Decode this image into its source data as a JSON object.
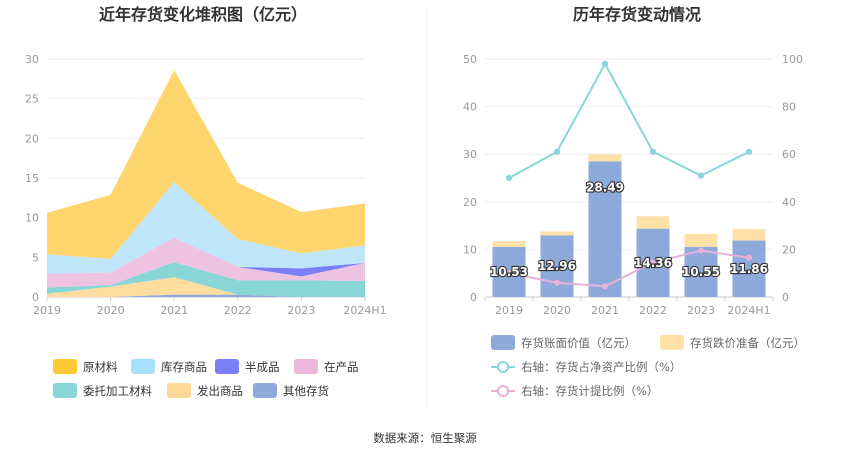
{
  "chart_data": [
    {
      "type": "area",
      "stacked": true,
      "title": "近年存货变化堆积图（亿元）",
      "categories": [
        "2019",
        "2020",
        "2021",
        "2022",
        "2023",
        "2024H1"
      ],
      "ylim": [
        0,
        30
      ],
      "yticks": [
        "0",
        "5",
        "10",
        "15",
        "20",
        "25",
        "30"
      ],
      "series": [
        {
          "name": "其他存货",
          "color": "#8eaadb",
          "values": [
            0,
            0,
            0.3,
            0.3,
            0,
            0
          ]
        },
        {
          "name": "发出商品",
          "color": "#ffdca0",
          "values": [
            0.4,
            1.3,
            2.2,
            0,
            0,
            0
          ]
        },
        {
          "name": "委托加工材料",
          "color": "#88d6d6",
          "values": [
            0.8,
            0.2,
            1.9,
            1.8,
            2.1,
            2.0
          ]
        },
        {
          "name": "在产品",
          "color": "#eec3e1",
          "values": [
            1.7,
            1.6,
            3.1,
            1.7,
            0.5,
            2.3
          ]
        },
        {
          "name": "半成品",
          "color": "#7b7ff5",
          "values": [
            0,
            0,
            0,
            0,
            1.0,
            0
          ]
        },
        {
          "name": "库存商品",
          "color": "#bee5f8",
          "values": [
            2.5,
            1.7,
            7.0,
            3.5,
            1.9,
            2.2
          ]
        },
        {
          "name": "原材料",
          "color": "#ffd56e",
          "values": [
            5.2,
            8.1,
            14.1,
            7.1,
            5.2,
            5.3
          ]
        }
      ],
      "legend": [
        {
          "name": "原材料",
          "color": "#ffc933"
        },
        {
          "name": "库存商品",
          "color": "#a7e0fb"
        },
        {
          "name": "半成品",
          "color": "#7b7ff5"
        },
        {
          "name": "在产品",
          "color": "#ecb6dd"
        },
        {
          "name": "委托加工材料",
          "color": "#88d6d6"
        },
        {
          "name": "发出商品",
          "color": "#ffd896"
        },
        {
          "name": "其他存货",
          "color": "#8eaadb"
        }
      ],
      "legend_position": "bottom"
    },
    {
      "type": "bar+line",
      "title": "历年存货变动情况",
      "categories": [
        "2019",
        "2020",
        "2021",
        "2022",
        "2023",
        "2024H1"
      ],
      "ylim_left": [
        0,
        50
      ],
      "yticks_left": [
        "0",
        "10",
        "20",
        "30",
        "40",
        "50"
      ],
      "ylim_right": [
        0,
        100
      ],
      "yticks_right": [
        "0",
        "20",
        "40",
        "60",
        "80",
        "100"
      ],
      "bars": [
        {
          "name": "存货账面价值（亿元）",
          "color": "#8eaadb",
          "values": [
            10.53,
            12.96,
            28.49,
            14.36,
            10.55,
            11.86
          ],
          "labels": [
            "10.53",
            "12.96",
            "28.49",
            "14.36",
            "10.55",
            "11.86"
          ]
        },
        {
          "name": "存货跌价准备（亿元）",
          "color": "#ffe0a6",
          "values": [
            1.2,
            0.8,
            1.5,
            2.6,
            2.7,
            2.4
          ]
        }
      ],
      "lines": [
        {
          "name": "右轴：存货占净资产比例（%）",
          "color": "#88d6dc",
          "axis": "right",
          "values": [
            50,
            61,
            98,
            61,
            51,
            61
          ]
        },
        {
          "name": "右轴：存货计提比例（%）",
          "color": "#e6b2d7",
          "axis": "right",
          "values": [
            10,
            6,
            4.5,
            14.5,
            19.5,
            16.5
          ]
        }
      ],
      "legend_position": "bottom"
    }
  ],
  "footer": {
    "source": "数据来源：恒生聚源"
  }
}
